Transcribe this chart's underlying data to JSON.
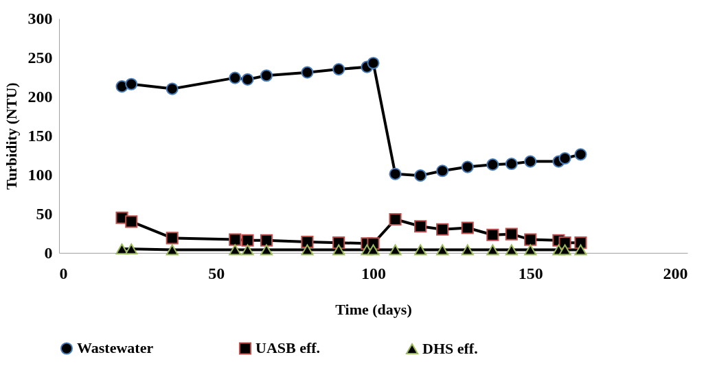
{
  "chart_data": {
    "type": "line",
    "xlabel": "Time (days)",
    "ylabel": "Turbidity (NTU)",
    "x": [
      20,
      23,
      36,
      56,
      60,
      66,
      79,
      89,
      98,
      100,
      107,
      115,
      122,
      130,
      138,
      144,
      150,
      159,
      161,
      166
    ],
    "series": [
      {
        "name": "Wastewater",
        "color": "#4a7ebb",
        "marker": "circle",
        "values": [
          213,
          216,
          210,
          224,
          222,
          227,
          231,
          235,
          238,
          243,
          101,
          99,
          105,
          110,
          113,
          114,
          117,
          117,
          121,
          126
        ]
      },
      {
        "name": "UASB eff.",
        "color": "#c0504d",
        "marker": "square",
        "values": [
          45,
          40,
          19,
          17,
          16,
          16,
          14,
          13,
          12,
          12,
          43,
          34,
          30,
          32,
          23,
          24,
          17,
          16,
          13,
          13
        ]
      },
      {
        "name": "DHS eff.",
        "color": "#9bbb59",
        "marker": "triangle",
        "values": [
          5,
          5,
          4,
          4,
          4,
          4,
          4,
          4,
          4,
          4,
          4,
          4,
          4,
          4,
          4,
          4,
          4,
          4,
          4,
          4
        ]
      }
    ],
    "xlim": [
      0,
      200
    ],
    "xticks": [
      0,
      50,
      100,
      150,
      200
    ],
    "ylim": [
      0,
      300
    ],
    "yticks": [
      0,
      50,
      100,
      150,
      200,
      250,
      300
    ],
    "grid": false,
    "legend": "bottom"
  }
}
